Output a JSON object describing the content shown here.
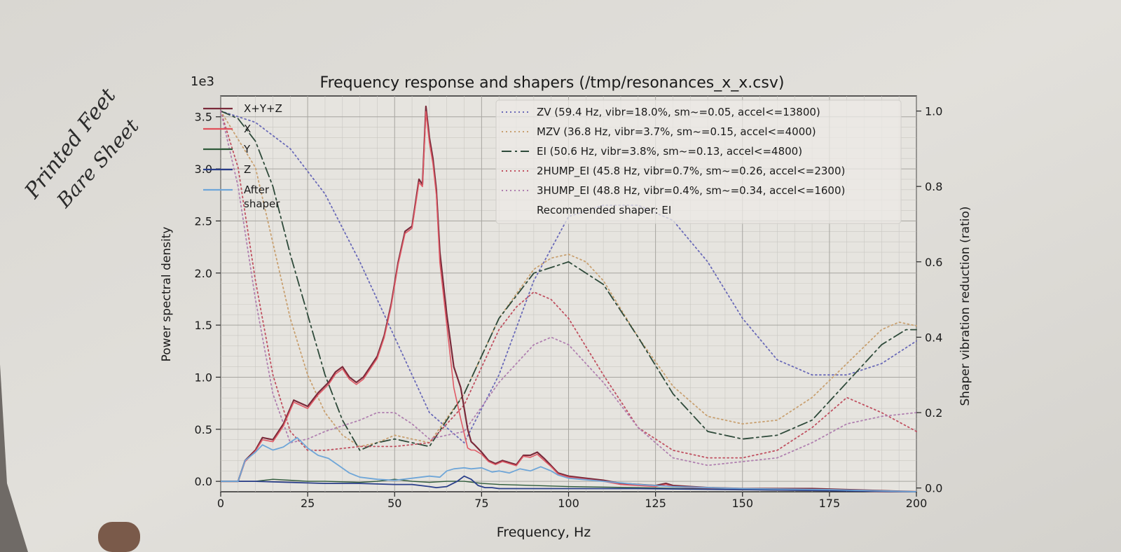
{
  "handwriting": {
    "line1": "Printed Feet",
    "line2": "Bare Sheet"
  },
  "chart_data": {
    "type": "line",
    "title": "Frequency response and shapers (/tmp/resonances_x_x.csv)",
    "xlabel": "Frequency, Hz",
    "ylabel": "Power spectral density",
    "y2label": "Shaper vibration reduction (ratio)",
    "y_offset_label": "1e3",
    "xlim": [
      0,
      200
    ],
    "ylim": [
      -0.1,
      3.7
    ],
    "y2lim": [
      -0.01,
      1.04
    ],
    "grid": true,
    "x_ticks": [
      0,
      25,
      50,
      75,
      100,
      125,
      150,
      175,
      200
    ],
    "y_ticks": [
      0.0,
      0.5,
      1.0,
      1.5,
      2.0,
      2.5,
      3.0,
      3.5
    ],
    "y_tick_labels": [
      "0.0",
      "0.5",
      "1.0",
      "1.5",
      "2.0",
      "2.5",
      "3.0",
      "3.5"
    ],
    "y2_ticks": [
      0.0,
      0.2,
      0.4,
      0.6,
      0.8,
      1.0
    ],
    "y2_tick_labels": [
      "0.0",
      "0.2",
      "0.4",
      "0.6",
      "0.8",
      "1.0"
    ],
    "legend_left": {
      "placement": "top-left",
      "entries": [
        {
          "label": "X+Y+Z",
          "color": "#7a2a3a",
          "dash": "solid"
        },
        {
          "label": "X",
          "color": "#e0505a",
          "dash": "solid"
        },
        {
          "label": "Y",
          "color": "#2e5a3a",
          "dash": "solid"
        },
        {
          "label": "Z",
          "color": "#2a3f8a",
          "dash": "solid"
        },
        {
          "label": "After\nshaper",
          "color": "#6fa6d8",
          "dash": "solid"
        }
      ]
    },
    "legend_right": {
      "placement": "top-right",
      "entries": [
        {
          "label": "ZV (59.4 Hz, vibr=18.0%, sm~=0.05, accel<=13800)",
          "color": "#6a6ab8",
          "dash": "dotted"
        },
        {
          "label": "MZV (36.8 Hz, vibr=3.7%, sm~=0.15, accel<=4000)",
          "color": "#c8a070",
          "dash": "dotted"
        },
        {
          "label": "EI (50.6 Hz, vibr=3.8%, sm~=0.13, accel<=4800)",
          "color": "#2e4a3a",
          "dash": "dashdot"
        },
        {
          "label": "2HUMP_EI (45.8 Hz, vibr=0.7%, sm~=0.26, accel<=2300)",
          "color": "#c05060",
          "dash": "dotted"
        },
        {
          "label": "3HUMP_EI (48.8 Hz, vibr=0.4%, sm~=0.34, accel<=1600)",
          "color": "#b080b0",
          "dash": "dotted"
        }
      ],
      "note": "Recommended shaper: EI"
    },
    "series_psd": [
      {
        "name": "X+Y+Z",
        "color": "#7a2a3a",
        "width": 2.2,
        "x": [
          0,
          5,
          7,
          10,
          12,
          15,
          18,
          21,
          25,
          28,
          31,
          33,
          35,
          37,
          39,
          41,
          43,
          45,
          47,
          49,
          51,
          53,
          55,
          57,
          58,
          59,
          60,
          61,
          62,
          63,
          65,
          67,
          69,
          71,
          72,
          73,
          75,
          77,
          79,
          81,
          83,
          85,
          87,
          89,
          91,
          93,
          95,
          97,
          100,
          105,
          110,
          115,
          120,
          125,
          128,
          130,
          135,
          140,
          150,
          160,
          170,
          180,
          190,
          200
        ],
        "y": [
          0.0,
          0.0,
          0.2,
          0.3,
          0.42,
          0.4,
          0.55,
          0.78,
          0.72,
          0.85,
          0.95,
          1.05,
          1.1,
          1.0,
          0.95,
          1.0,
          1.1,
          1.2,
          1.4,
          1.7,
          2.1,
          2.4,
          2.45,
          2.9,
          2.85,
          3.6,
          3.3,
          3.1,
          2.8,
          2.2,
          1.6,
          1.1,
          0.9,
          0.5,
          0.38,
          0.35,
          0.28,
          0.2,
          0.17,
          0.2,
          0.18,
          0.16,
          0.25,
          0.25,
          0.28,
          0.22,
          0.15,
          0.08,
          0.05,
          0.03,
          0.01,
          -0.02,
          -0.03,
          -0.04,
          -0.02,
          -0.04,
          -0.05,
          -0.06,
          -0.07,
          -0.07,
          -0.07,
          -0.08,
          -0.09,
          -0.1
        ]
      },
      {
        "name": "X",
        "color": "#e05a66",
        "width": 1.6,
        "x": [
          0,
          5,
          7,
          10,
          12,
          15,
          18,
          21,
          25,
          28,
          31,
          33,
          35,
          37,
          39,
          41,
          43,
          45,
          47,
          49,
          51,
          53,
          55,
          57,
          58,
          59,
          60,
          61,
          62,
          63,
          65,
          67,
          69,
          71,
          72,
          73,
          75,
          77,
          79,
          81,
          83,
          85,
          87,
          89,
          91,
          93,
          95,
          97,
          100,
          105,
          110,
          115,
          120,
          125,
          128,
          130,
          135,
          140,
          150,
          160,
          170,
          180,
          190,
          200
        ],
        "y": [
          0.0,
          0.0,
          0.19,
          0.29,
          0.4,
          0.38,
          0.53,
          0.76,
          0.7,
          0.83,
          0.93,
          1.03,
          1.08,
          0.98,
          0.93,
          0.98,
          1.08,
          1.18,
          1.38,
          1.68,
          2.08,
          2.38,
          2.43,
          2.87,
          2.83,
          3.55,
          3.25,
          3.05,
          2.75,
          2.1,
          1.5,
          0.9,
          0.6,
          0.32,
          0.3,
          0.3,
          0.26,
          0.19,
          0.16,
          0.19,
          0.17,
          0.15,
          0.24,
          0.23,
          0.26,
          0.2,
          0.14,
          0.07,
          0.04,
          0.02,
          0.0,
          -0.03,
          -0.04,
          -0.05,
          -0.03,
          -0.05,
          -0.06,
          -0.07,
          -0.08,
          -0.08,
          -0.08,
          -0.09,
          -0.1,
          -0.1
        ]
      },
      {
        "name": "Y",
        "color": "#2e5a3a",
        "width": 1.4,
        "x": [
          0,
          5,
          10,
          15,
          20,
          25,
          30,
          40,
          45,
          50,
          55,
          60,
          65,
          70,
          75,
          80,
          90,
          100,
          120,
          150,
          200
        ],
        "y": [
          0.0,
          0.0,
          0.0,
          0.02,
          0.01,
          0.0,
          0.0,
          -0.01,
          0.0,
          0.02,
          0.0,
          -0.01,
          0.0,
          0.0,
          -0.02,
          -0.03,
          -0.04,
          -0.05,
          -0.06,
          -0.08,
          -0.1
        ]
      },
      {
        "name": "Z",
        "color": "#2a3f8a",
        "width": 1.8,
        "x": [
          0,
          10,
          20,
          30,
          40,
          50,
          55,
          60,
          62,
          65,
          68,
          70,
          72,
          74,
          76,
          78,
          80,
          90,
          100,
          120,
          150,
          175,
          200
        ],
        "y": [
          0.0,
          0.0,
          -0.01,
          -0.02,
          -0.02,
          -0.03,
          -0.03,
          -0.05,
          -0.06,
          -0.05,
          0.0,
          0.05,
          0.02,
          -0.04,
          -0.06,
          -0.06,
          -0.07,
          -0.07,
          -0.07,
          -0.07,
          -0.08,
          -0.09,
          -0.1
        ]
      },
      {
        "name": "After shaper",
        "color": "#6fa6d8",
        "width": 1.8,
        "x": [
          0,
          5,
          7,
          10,
          12,
          15,
          18,
          22,
          25,
          28,
          31,
          34,
          37,
          40,
          45,
          50,
          55,
          60,
          63,
          65,
          67,
          70,
          72,
          75,
          78,
          80,
          83,
          86,
          89,
          92,
          95,
          97,
          100,
          110,
          120,
          130,
          150,
          175,
          200
        ],
        "y": [
          0.0,
          0.0,
          0.2,
          0.28,
          0.35,
          0.3,
          0.33,
          0.42,
          0.32,
          0.25,
          0.22,
          0.15,
          0.08,
          0.04,
          0.02,
          0.01,
          0.03,
          0.05,
          0.04,
          0.1,
          0.12,
          0.13,
          0.12,
          0.13,
          0.09,
          0.1,
          0.08,
          0.12,
          0.1,
          0.14,
          0.1,
          0.06,
          0.03,
          0.0,
          -0.03,
          -0.05,
          -0.07,
          -0.08,
          -0.1
        ]
      }
    ],
    "series_shapers": [
      {
        "name": "ZV",
        "color": "#6a6ab8",
        "dash": "dotted",
        "x": [
          0,
          10,
          20,
          30,
          40,
          50,
          60,
          70,
          80,
          90,
          100,
          110,
          120,
          125,
          130,
          140,
          150,
          160,
          170,
          180,
          190,
          200
        ],
        "y": [
          1.0,
          0.97,
          0.9,
          0.78,
          0.6,
          0.4,
          0.2,
          0.12,
          0.3,
          0.55,
          0.72,
          0.75,
          0.75,
          0.73,
          0.71,
          0.6,
          0.45,
          0.34,
          0.3,
          0.3,
          0.33,
          0.39
        ]
      },
      {
        "name": "MZV",
        "color": "#c8a070",
        "dash": "dotted",
        "x": [
          0,
          10,
          15,
          20,
          25,
          30,
          35,
          40,
          45,
          50,
          55,
          60,
          70,
          80,
          90,
          95,
          100,
          105,
          110,
          120,
          130,
          140,
          150,
          160,
          170,
          180,
          190,
          195,
          200
        ],
        "y": [
          1.0,
          0.85,
          0.65,
          0.45,
          0.3,
          0.2,
          0.14,
          0.11,
          0.12,
          0.14,
          0.13,
          0.12,
          0.25,
          0.45,
          0.58,
          0.61,
          0.62,
          0.6,
          0.55,
          0.4,
          0.27,
          0.19,
          0.17,
          0.18,
          0.24,
          0.33,
          0.42,
          0.44,
          0.43
        ]
      },
      {
        "name": "EI",
        "color": "#2e4a3a",
        "dash": "dashdot",
        "x": [
          0,
          5,
          10,
          15,
          20,
          25,
          30,
          35,
          40,
          45,
          50,
          55,
          60,
          70,
          80,
          90,
          100,
          110,
          120,
          130,
          140,
          150,
          160,
          170,
          180,
          190,
          197,
          200
        ],
        "y": [
          1.0,
          0.98,
          0.92,
          0.8,
          0.62,
          0.46,
          0.3,
          0.18,
          0.1,
          0.12,
          0.13,
          0.12,
          0.11,
          0.25,
          0.45,
          0.57,
          0.6,
          0.54,
          0.4,
          0.25,
          0.15,
          0.13,
          0.14,
          0.18,
          0.28,
          0.38,
          0.42,
          0.42
        ]
      },
      {
        "name": "2HUMP_EI",
        "color": "#c05060",
        "dash": "dotted",
        "x": [
          0,
          5,
          10,
          15,
          20,
          25,
          30,
          40,
          50,
          60,
          70,
          80,
          85,
          90,
          95,
          100,
          110,
          120,
          130,
          140,
          150,
          160,
          170,
          180,
          190,
          200
        ],
        "y": [
          1.0,
          0.85,
          0.55,
          0.3,
          0.15,
          0.1,
          0.1,
          0.11,
          0.11,
          0.12,
          0.22,
          0.42,
          0.48,
          0.52,
          0.5,
          0.45,
          0.3,
          0.16,
          0.1,
          0.08,
          0.08,
          0.1,
          0.16,
          0.24,
          0.2,
          0.15
        ]
      },
      {
        "name": "3HUMP_EI",
        "color": "#b080b0",
        "dash": "dotted",
        "x": [
          0,
          5,
          10,
          15,
          20,
          25,
          30,
          40,
          45,
          50,
          55,
          60,
          70,
          80,
          90,
          95,
          100,
          110,
          120,
          130,
          140,
          150,
          160,
          170,
          180,
          190,
          200
        ],
        "y": [
          1.0,
          0.8,
          0.5,
          0.25,
          0.12,
          0.13,
          0.15,
          0.18,
          0.2,
          0.2,
          0.17,
          0.13,
          0.15,
          0.28,
          0.38,
          0.4,
          0.38,
          0.28,
          0.16,
          0.08,
          0.06,
          0.07,
          0.08,
          0.12,
          0.17,
          0.19,
          0.2
        ]
      }
    ]
  }
}
